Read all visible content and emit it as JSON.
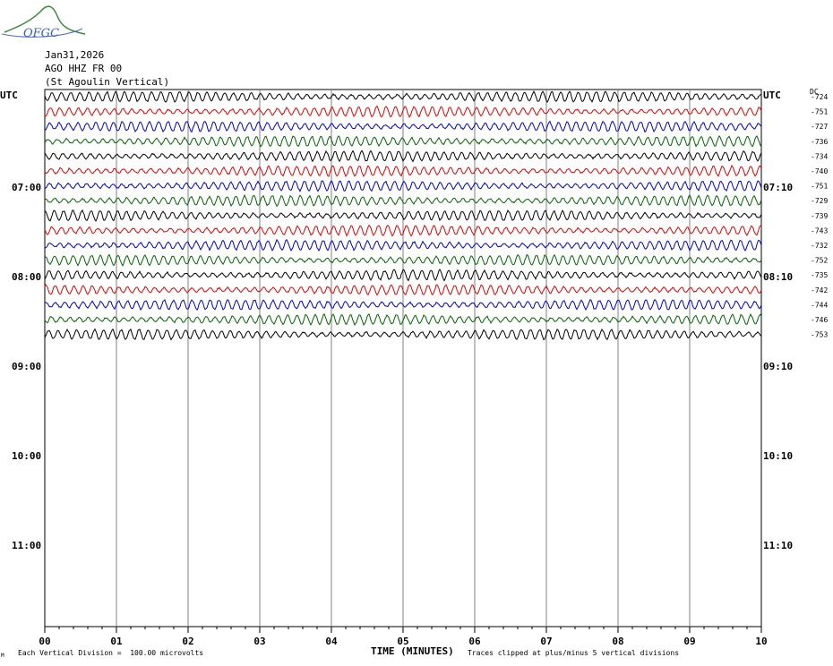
{
  "logo": {
    "text": "OFGC"
  },
  "header": {
    "date": "Jan31,2026",
    "station": "AGO HHZ FR 00",
    "location": "(St Agoulin Vertical)"
  },
  "left_axis_title": "UTC",
  "right_axis_title": "UTC",
  "dc_label": "DC",
  "footer": {
    "scale": "Each Vertical Division =  100.00 microvolts",
    "clip": "Traces clipped at plus/minus 5 vertical divisions",
    "corner": "M"
  },
  "chart_data": {
    "type": "line",
    "xlabel": "TIME (MINUTES)",
    "x_ticks": [
      "00",
      "01",
      "02",
      "03",
      "04",
      "05",
      "06",
      "07",
      "08",
      "09",
      "10"
    ],
    "xlim": [
      0,
      10
    ],
    "hour_labels_left": [
      "07:00",
      "08:00",
      "09:00",
      "10:00",
      "11:00"
    ],
    "hour_labels_right": [
      "UTC",
      "07:10",
      "08:10",
      "09:10",
      "10:10",
      "11:10"
    ],
    "trace_colors": [
      "#000000",
      "#e00000",
      "#0000c8",
      "#006400"
    ],
    "dc_offsets": [
      -724,
      -751,
      -727,
      -736,
      -734,
      -740,
      -751,
      -729,
      -739,
      -743,
      -732,
      -752,
      -735,
      -742,
      -744,
      -746,
      -753
    ],
    "trace_count": 17,
    "grid": true
  }
}
